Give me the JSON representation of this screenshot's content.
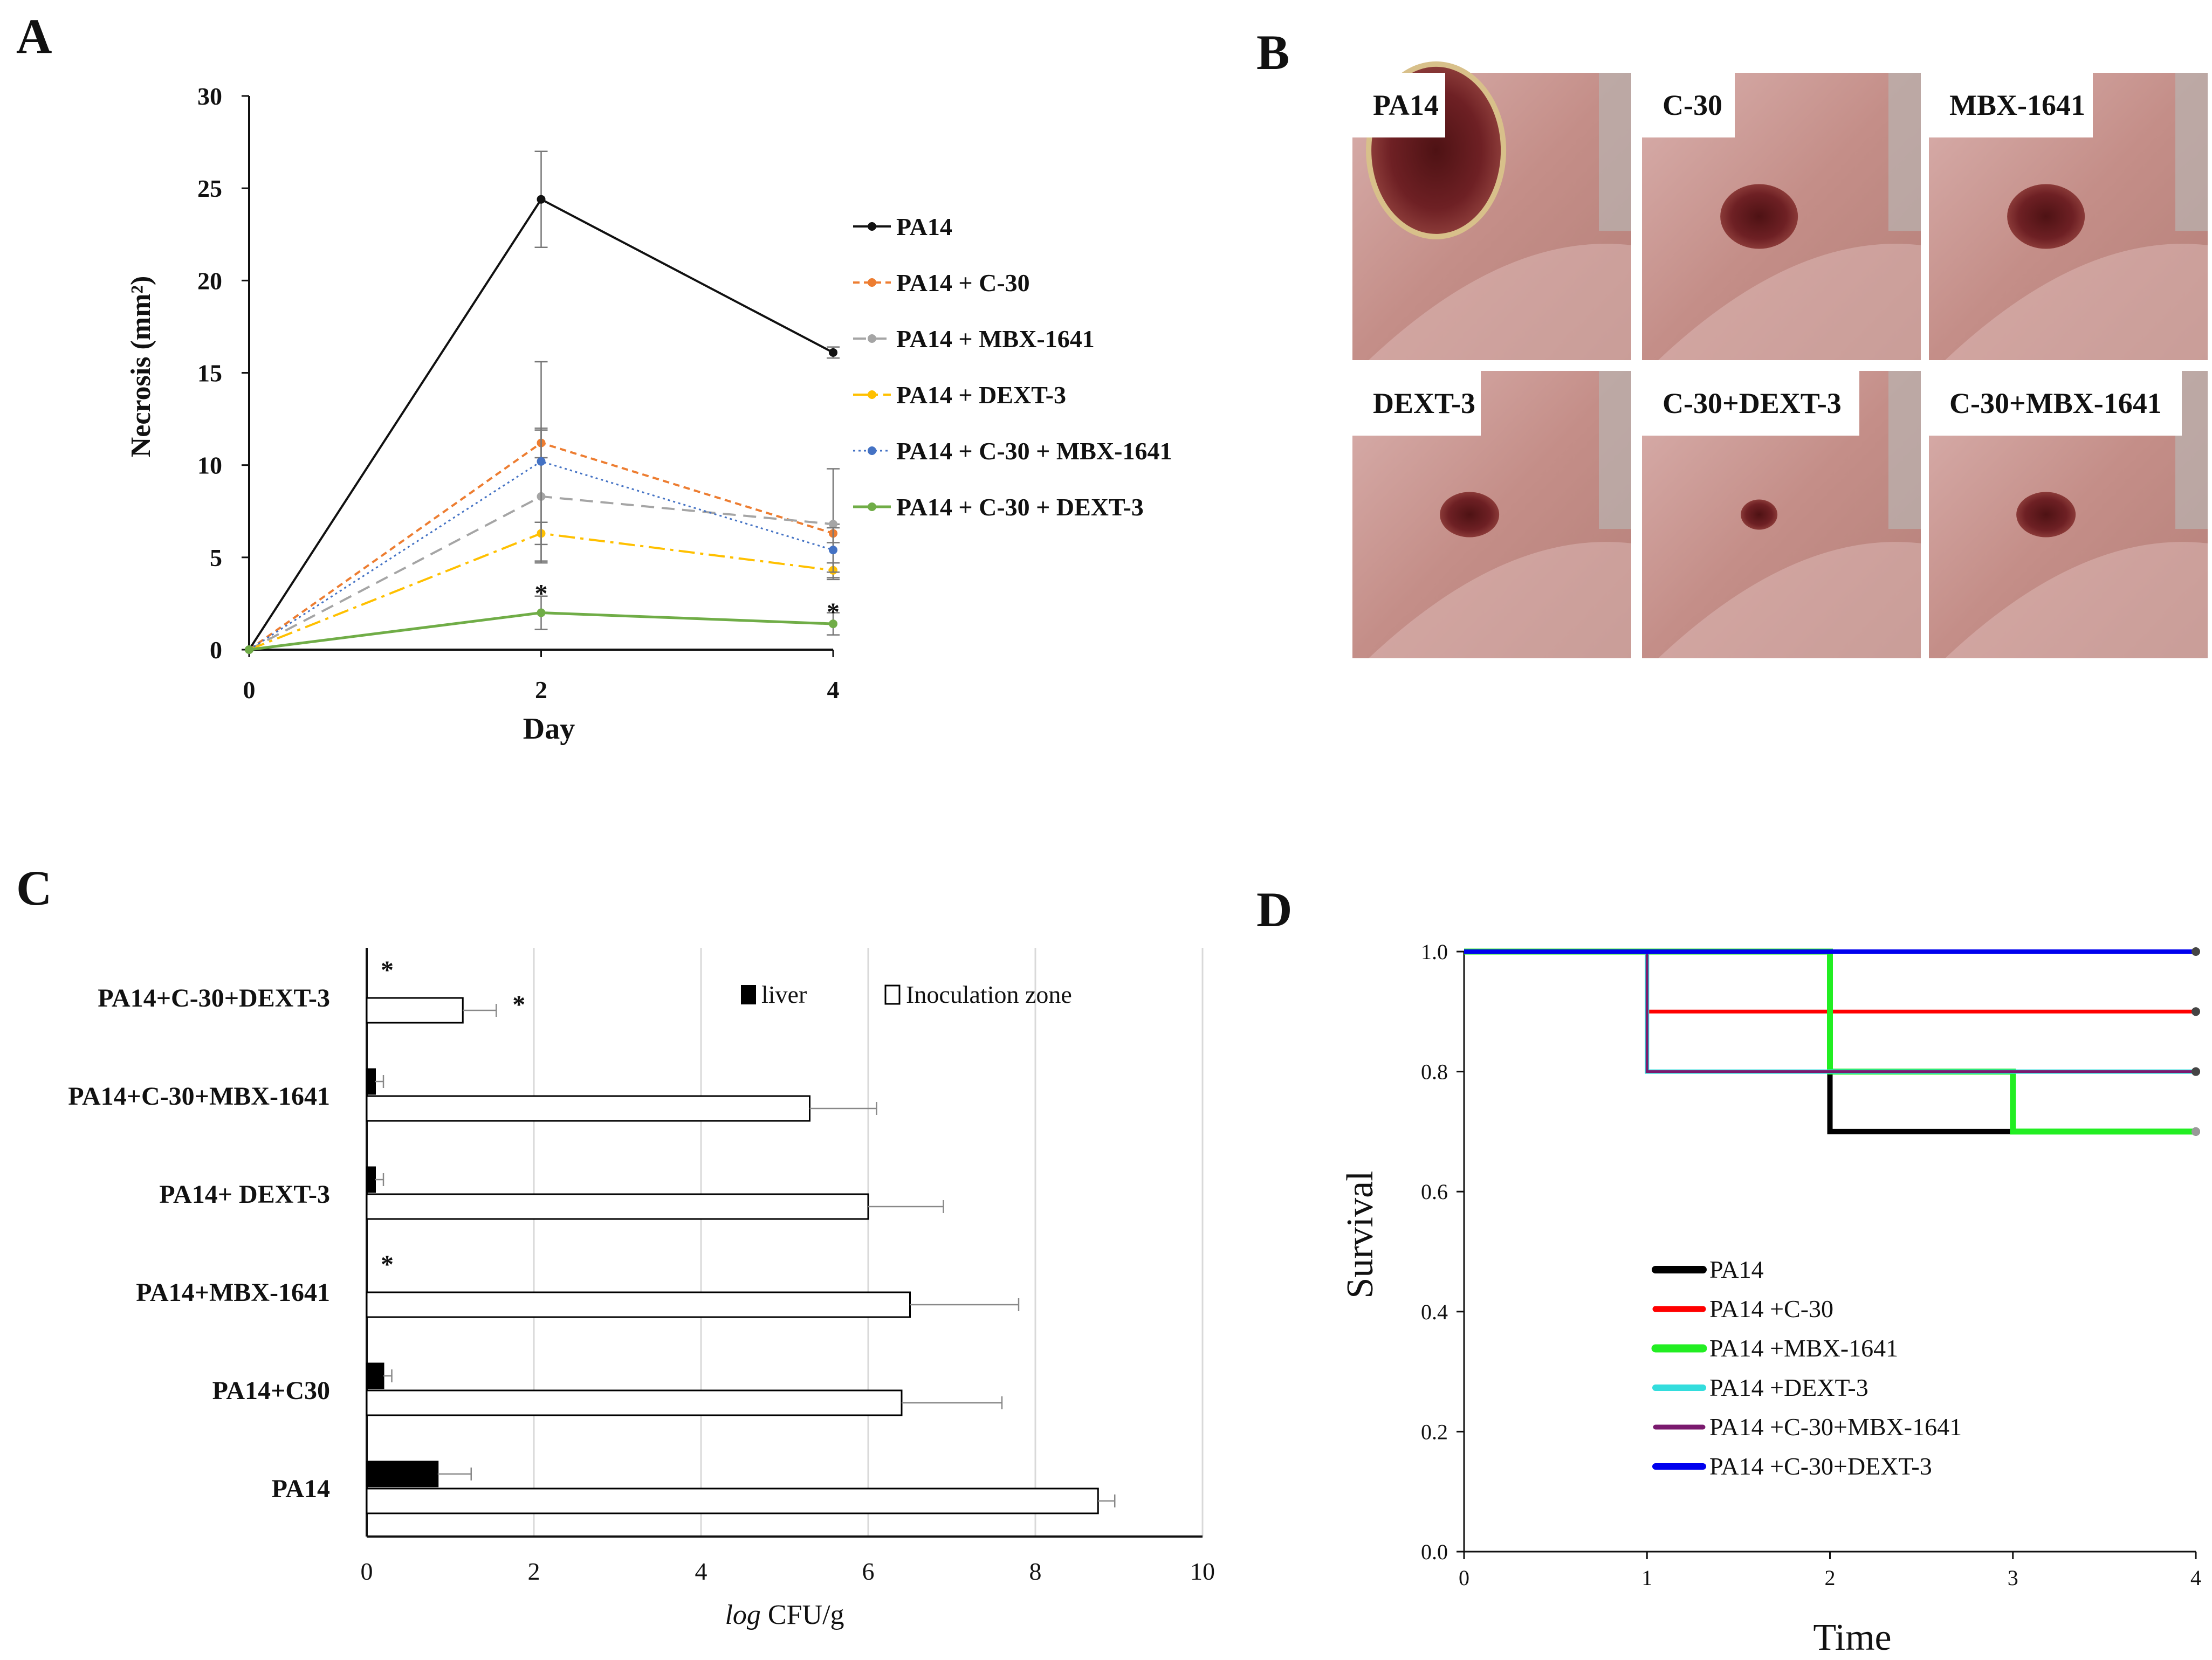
{
  "panel_labels": {
    "a": "A",
    "b": "B",
    "c": "C",
    "d": "D"
  },
  "chart_data": [
    {
      "panel": "A",
      "type": "line",
      "title": "",
      "xlabel": "Day",
      "ylabel": "Necrosis (mm²)",
      "x": [
        0,
        2,
        4
      ],
      "xticks": [
        "0",
        "2",
        "4"
      ],
      "yticks": [
        "0",
        "5",
        "10",
        "15",
        "20",
        "25",
        "30"
      ],
      "xlim": [
        0,
        4
      ],
      "ylim": [
        0,
        30
      ],
      "grid": false,
      "legend": "right",
      "series": [
        {
          "name": "PA14",
          "values": [
            0,
            24.4,
            16.1
          ],
          "err": [
            0,
            2.6,
            0.3
          ],
          "color": "#111111",
          "dash": "",
          "width": 4
        },
        {
          "name": "PA14 + C-30",
          "values": [
            0,
            11.2,
            6.3
          ],
          "err": [
            0,
            0.8,
            0.5
          ],
          "color": "#ED7D31",
          "dash": "12 8",
          "width": 4
        },
        {
          "name": "PA14 + MBX-1641",
          "values": [
            0,
            8.3,
            6.8
          ],
          "err": [
            0,
            3.6,
            3.0
          ],
          "color": "#A5A5A5",
          "dash": "24 14",
          "width": 4
        },
        {
          "name": "PA14 + DEXT-3",
          "values": [
            0,
            6.3,
            4.3
          ],
          "err": [
            0,
            0.6,
            0.4
          ],
          "color": "#FFC000",
          "dash": "30 10 6 10",
          "width": 4
        },
        {
          "name": "PA14 + C-30 + MBX-1641",
          "values": [
            0,
            10.2,
            5.4
          ],
          "err": [
            0,
            5.4,
            1.2
          ],
          "color": "#4472C4",
          "dash": "4 6",
          "width": 3
        },
        {
          "name": "PA14 + C-30 + DEXT-3",
          "values": [
            0,
            2.0,
            1.4
          ],
          "err": [
            0,
            0.9,
            0.6
          ],
          "color": "#70AD47",
          "dash": "",
          "width": 5
        }
      ],
      "annotations": [
        {
          "text": "*",
          "x": 2,
          "y": 3.4
        },
        {
          "text": "*",
          "x": 4,
          "y": 2.4
        }
      ]
    },
    {
      "panel": "C",
      "type": "bar",
      "orientation": "horizontal",
      "xlabel_italic": "log",
      "xlabel_rest": " CFU/g",
      "categories": [
        "PA14+C-30+DEXT-3",
        "PA14+C-30+MBX-1641",
        "PA14+ DEXT-3",
        "PA14+MBX-1641",
        "PA14+C30",
        "PA14"
      ],
      "xticks": [
        "0",
        "2",
        "4",
        "6",
        "8",
        "10"
      ],
      "xlim": [
        0,
        10
      ],
      "grid": true,
      "legend": "top-right",
      "series": [
        {
          "name": "liver",
          "values": [
            0,
            0.1,
            0.1,
            0,
            0.2,
            0.85
          ],
          "err": [
            0,
            0.1,
            0.1,
            0,
            0.1,
            0.4
          ],
          "color": "#000000"
        },
        {
          "name": "Inoculation zone",
          "values": [
            1.15,
            5.3,
            6.0,
            6.5,
            6.4,
            8.75
          ],
          "err": [
            0.4,
            0.8,
            0.9,
            1.3,
            1.2,
            0.2
          ],
          "color": "#ffffff"
        }
      ],
      "annotations": [
        {
          "text": "*",
          "category": 0,
          "series": "liver"
        },
        {
          "text": "*",
          "category": 0,
          "series": "Inoculation zone"
        },
        {
          "text": "*",
          "category": 3,
          "series": "liver"
        }
      ]
    },
    {
      "panel": "D",
      "type": "line",
      "subtype": "step",
      "xlabel": "Time",
      "ylabel": "Survival",
      "xticks": [
        "0",
        "1",
        "2",
        "3",
        "4"
      ],
      "yticks": [
        "0.0",
        "0.2",
        "0.4",
        "0.6",
        "0.8",
        "1.0"
      ],
      "xlim": [
        0,
        4
      ],
      "ylim": [
        0,
        1
      ],
      "grid": false,
      "legend": "bottom-center",
      "series": [
        {
          "name": "PA14",
          "x": [
            0,
            2,
            4
          ],
          "y": [
            1.0,
            0.7,
            0.7
          ],
          "color": "#000000",
          "width": 10
        },
        {
          "name": "PA14 +C-30",
          "x": [
            0,
            1,
            4
          ],
          "y": [
            1.0,
            0.9,
            0.9
          ],
          "color": "#ff0000",
          "width": 7
        },
        {
          "name": "PA14 +MBX-1641",
          "x": [
            0,
            2,
            3,
            4
          ],
          "y": [
            1.0,
            0.8,
            0.7,
            0.7
          ],
          "color": "#22ee22",
          "width": 11
        },
        {
          "name": "PA14 +DEXT-3",
          "x": [
            0,
            1,
            4
          ],
          "y": [
            1.0,
            0.8,
            0.8
          ],
          "color": "#33dddd",
          "width": 8
        },
        {
          "name": "PA14 +C-30+MBX-1641",
          "x": [
            0,
            1,
            4
          ],
          "y": [
            1.0,
            0.8,
            0.8
          ],
          "color": "#7a1a6e",
          "width": 5
        },
        {
          "name": "PA14 +C-30+DEXT-3",
          "x": [
            0,
            4
          ],
          "y": [
            1.0,
            1.0
          ],
          "color": "#0000ee",
          "width": 8
        }
      ]
    }
  ],
  "photos": [
    {
      "label": "PA14",
      "wound": "large"
    },
    {
      "label": "C-30",
      "wound": "medium"
    },
    {
      "label": "MBX-1641",
      "wound": "medium"
    },
    {
      "label": "DEXT-3",
      "wound": "small"
    },
    {
      "label": "C-30+DEXT-3",
      "wound": "tiny"
    },
    {
      "label": "C-30+MBX-1641",
      "wound": "small"
    }
  ],
  "colors": {
    "skin": "#c9958f",
    "skin_light": "#d8aaa5",
    "wound": "#6a1e20",
    "axis": "#111111",
    "grid": "#d9d9d9"
  }
}
